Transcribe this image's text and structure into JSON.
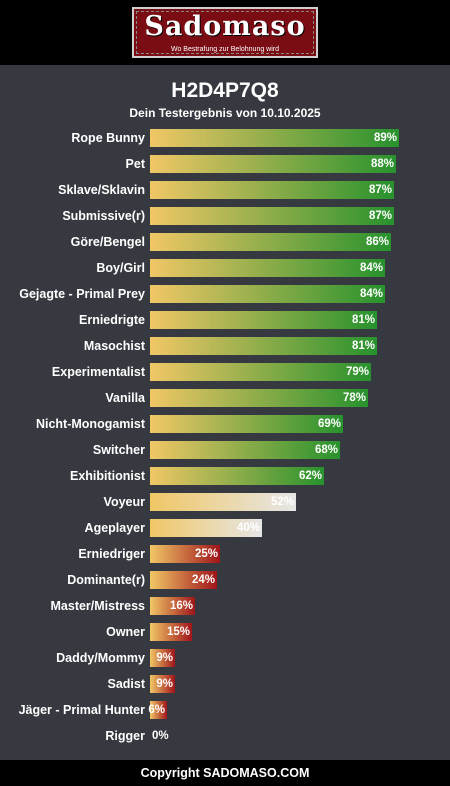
{
  "header": {
    "logo_title": "Sadomaso",
    "logo_subtitle": "Wo Bestrafung zur Belohnung wird"
  },
  "result": {
    "title": "H2D4P7Q8",
    "subtitle": "Dein Testergebnis von 10.10.2025"
  },
  "colors": {
    "bar_start": "#f1c766",
    "high": "#27922d",
    "mid": "#e6e6e6",
    "low": "#a0141a"
  },
  "chart_data": {
    "type": "bar",
    "orientation": "horizontal",
    "xlim": [
      0,
      100
    ],
    "unit": "%",
    "categories": [
      "Rope Bunny",
      "Pet",
      "Sklave/Sklavin",
      "Submissive(r)",
      "Göre/Bengel",
      "Boy/Girl",
      "Gejagte - Primal Prey",
      "Erniedrigte",
      "Masochist",
      "Experimentalist",
      "Vanilla",
      "Nicht-Monogamist",
      "Switcher",
      "Exhibitionist",
      "Voyeur",
      "Ageplayer",
      "Erniedriger",
      "Dominante(r)",
      "Master/Mistress",
      "Owner",
      "Daddy/Mommy",
      "Sadist",
      "Jäger - Primal Hunter",
      "Rigger"
    ],
    "values": [
      89,
      88,
      87,
      87,
      86,
      84,
      84,
      81,
      81,
      79,
      78,
      69,
      68,
      62,
      52,
      40,
      25,
      24,
      16,
      15,
      9,
      9,
      6,
      0
    ],
    "labels": [
      "89%",
      "88%",
      "87%",
      "87%",
      "86%",
      "84%",
      "84%",
      "81%",
      "81%",
      "79%",
      "78%",
      "69%",
      "68%",
      "62%",
      "52%",
      "40%",
      "25%",
      "24%",
      "16%",
      "15%",
      "9%",
      "9%",
      "6%",
      "0%"
    ]
  },
  "footer": {
    "text": "Copyright SADOMASO.COM"
  }
}
